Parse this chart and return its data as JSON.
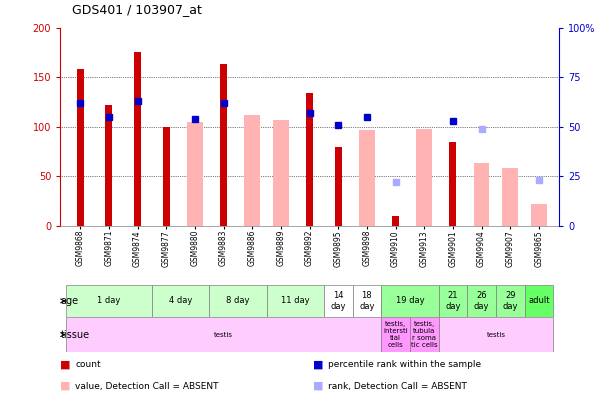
{
  "title": "GDS401 / 103907_at",
  "samples": [
    "GSM9868",
    "GSM9871",
    "GSM9874",
    "GSM9877",
    "GSM9880",
    "GSM9883",
    "GSM9886",
    "GSM9889",
    "GSM9892",
    "GSM9895",
    "GSM9898",
    "GSM9910",
    "GSM9913",
    "GSM9901",
    "GSM9904",
    "GSM9907",
    "GSM9865"
  ],
  "count_values": [
    158,
    122,
    175,
    100,
    null,
    163,
    null,
    null,
    134,
    80,
    null,
    10,
    null,
    85,
    null,
    null,
    null
  ],
  "absent_value_values": [
    null,
    null,
    null,
    null,
    105,
    null,
    112,
    107,
    null,
    null,
    97,
    null,
    98,
    null,
    63,
    58,
    22
  ],
  "percentile_rank": [
    62,
    55,
    63,
    null,
    54,
    62,
    null,
    null,
    57,
    51,
    55,
    null,
    null,
    53,
    null,
    null,
    null
  ],
  "absent_rank_cols": [
    11,
    14,
    16
  ],
  "absent_rank_vals": [
    22,
    49,
    23
  ],
  "age_groups": [
    {
      "label": "1 day",
      "cols": [
        0,
        1,
        2
      ],
      "color": "#ccffcc"
    },
    {
      "label": "4 day",
      "cols": [
        3,
        4
      ],
      "color": "#ccffcc"
    },
    {
      "label": "8 day",
      "cols": [
        5,
        6
      ],
      "color": "#ccffcc"
    },
    {
      "label": "11 day",
      "cols": [
        7,
        8
      ],
      "color": "#ccffcc"
    },
    {
      "label": "14\nday",
      "cols": [
        9
      ],
      "color": "#ffffff"
    },
    {
      "label": "18\nday",
      "cols": [
        10
      ],
      "color": "#ffffff"
    },
    {
      "label": "19 day",
      "cols": [
        11,
        12
      ],
      "color": "#99ff99"
    },
    {
      "label": "21\nday",
      "cols": [
        13
      ],
      "color": "#99ff99"
    },
    {
      "label": "26\nday",
      "cols": [
        14
      ],
      "color": "#99ff99"
    },
    {
      "label": "29\nday",
      "cols": [
        15
      ],
      "color": "#99ff99"
    },
    {
      "label": "adult",
      "cols": [
        16
      ],
      "color": "#66ff66"
    }
  ],
  "tissue_groups": [
    {
      "label": "testis",
      "cols": [
        0,
        1,
        2,
        3,
        4,
        5,
        6,
        7,
        8,
        9,
        10
      ],
      "color": "#ffccff"
    },
    {
      "label": "testis,\nintersti\ntial\ncells",
      "cols": [
        11
      ],
      "color": "#ff99ff"
    },
    {
      "label": "testis,\ntubula\nr soma\ntic cells",
      "cols": [
        12
      ],
      "color": "#ff99ff"
    },
    {
      "label": "testis",
      "cols": [
        13,
        14,
        15,
        16
      ],
      "color": "#ffccff"
    }
  ],
  "bar_color_red": "#cc0000",
  "bar_color_absent": "#ffb3b3",
  "dot_color_blue": "#0000cc",
  "dot_color_absent": "#aaaaff",
  "ylabel_left_color": "#cc0000",
  "ylabel_right_color": "#0000cc",
  "legend_items": [
    {
      "color": "#cc0000",
      "label": "count"
    },
    {
      "color": "#0000cc",
      "label": "percentile rank within the sample"
    },
    {
      "color": "#ffb3b3",
      "label": "value, Detection Call = ABSENT"
    },
    {
      "color": "#aaaaff",
      "label": "rank, Detection Call = ABSENT"
    }
  ]
}
